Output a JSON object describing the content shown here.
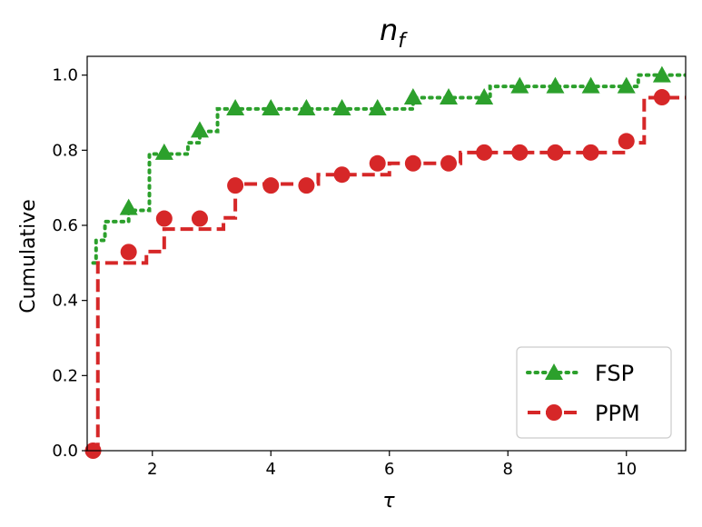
{
  "chart_data": {
    "type": "line",
    "title_main": "n",
    "title_sub": "f",
    "xlabel": "τ",
    "ylabel": "Cumulative",
    "xlim": [
      0.9,
      11.0
    ],
    "ylim": [
      0.0,
      1.05
    ],
    "xticks": [
      2,
      4,
      6,
      8,
      10
    ],
    "yticks": [
      0.0,
      0.2,
      0.4,
      0.6,
      0.8,
      1.0
    ],
    "xtick_labels": [
      "2",
      "4",
      "6",
      "8",
      "10"
    ],
    "ytick_labels": [
      "0.0",
      "0.2",
      "0.4",
      "0.6",
      "0.8",
      "1.0"
    ],
    "legend_position": "bottom-right",
    "series": [
      {
        "name": "FSP",
        "color": "#2ca02c",
        "linestyle": "dotted",
        "marker": "triangle",
        "step_x": [
          1.0,
          1.05,
          1.2,
          1.6,
          1.95,
          2.2,
          2.6,
          2.8,
          3.1,
          3.4,
          4.0,
          6.4,
          7.7,
          8.2,
          10.2,
          10.6,
          11.0
        ],
        "step_y": [
          0.5,
          0.56,
          0.61,
          0.64,
          0.79,
          0.79,
          0.82,
          0.85,
          0.91,
          0.91,
          0.91,
          0.94,
          0.97,
          0.97,
          1.0,
          1.0,
          1.0
        ],
        "marker_x": [
          1.6,
          2.2,
          2.8,
          3.4,
          4.0,
          4.6,
          5.2,
          5.8,
          6.4,
          7.0,
          7.6,
          8.2,
          8.8,
          9.4,
          10.0,
          10.6
        ],
        "marker_y": [
          0.647,
          0.794,
          0.853,
          0.912,
          0.912,
          0.912,
          0.912,
          0.912,
          0.941,
          0.941,
          0.941,
          0.971,
          0.971,
          0.971,
          0.971,
          1.0
        ]
      },
      {
        "name": "PPM",
        "color": "#d62728",
        "linestyle": "dashed",
        "marker": "circle",
        "step_x": [
          1.0,
          1.08,
          1.9,
          2.2,
          3.2,
          3.4,
          4.6,
          4.8,
          5.8,
          6.0,
          7.0,
          7.2,
          10.0,
          10.3,
          11.0
        ],
        "step_y": [
          0.0,
          0.5,
          0.53,
          0.59,
          0.62,
          0.71,
          0.71,
          0.735,
          0.735,
          0.765,
          0.765,
          0.794,
          0.82,
          0.94,
          0.94
        ],
        "marker_x": [
          1.0,
          1.6,
          2.2,
          2.8,
          3.4,
          4.0,
          4.6,
          5.2,
          5.8,
          6.4,
          7.0,
          7.6,
          8.2,
          8.8,
          9.4,
          10.0,
          10.6
        ],
        "marker_y": [
          0.0,
          0.529,
          0.618,
          0.618,
          0.706,
          0.706,
          0.706,
          0.735,
          0.765,
          0.765,
          0.765,
          0.794,
          0.794,
          0.794,
          0.794,
          0.824,
          0.941
        ]
      }
    ]
  }
}
